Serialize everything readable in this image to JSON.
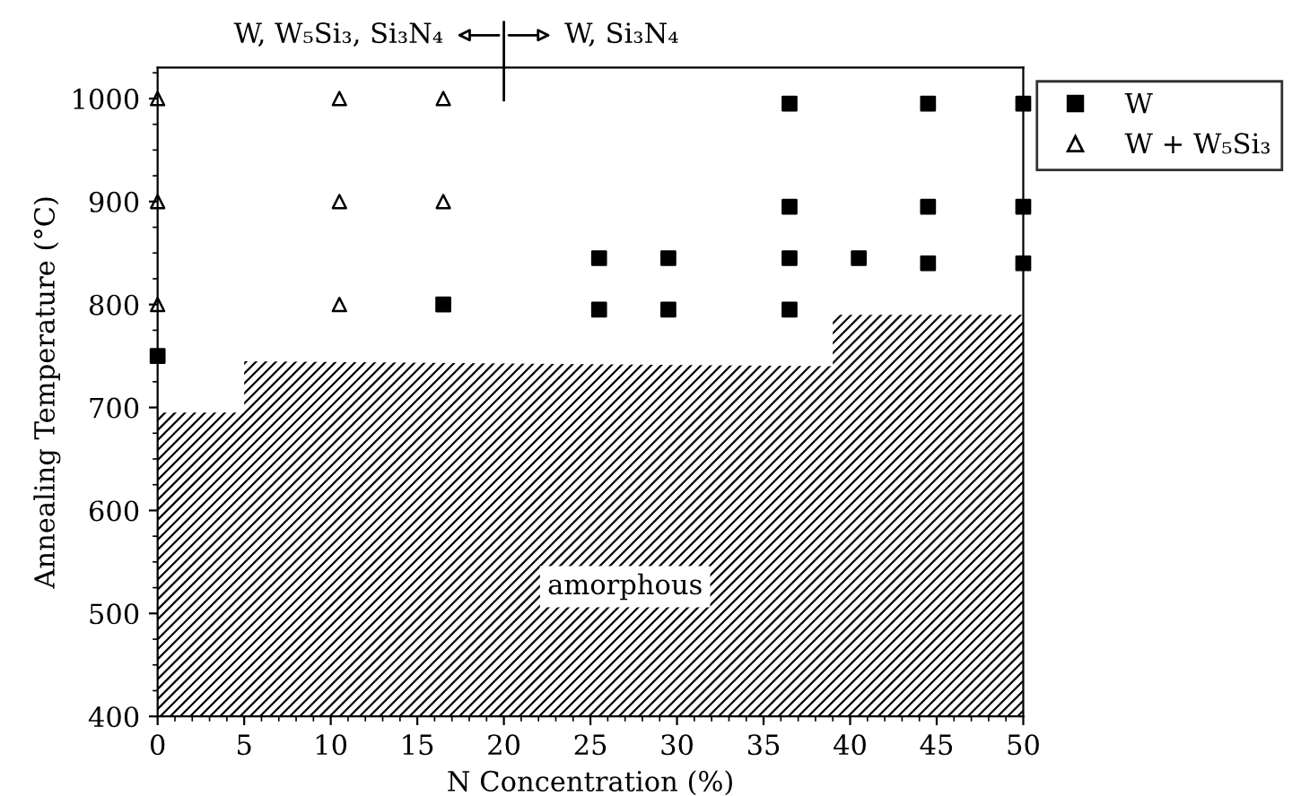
{
  "chart_data": {
    "type": "scatter",
    "xlabel": "N Concentration (%)",
    "ylabel": "Annealing Temperature (°C)",
    "xlim": [
      0,
      50
    ],
    "ylim": [
      400,
      1030
    ],
    "xticks": [
      0,
      5,
      10,
      15,
      20,
      25,
      30,
      35,
      40,
      45,
      50
    ],
    "yticks": [
      400,
      500,
      600,
      700,
      800,
      900,
      1000
    ],
    "legend": "right",
    "grid": false,
    "series": [
      {
        "name": "W",
        "color": "#000000",
        "marker": "square",
        "x": [
          0,
          16.5,
          25.5,
          25.5,
          29.5,
          29.5,
          36.5,
          36.5,
          36.5,
          36.5,
          40.5,
          44.5,
          44.5,
          44.5,
          50,
          50,
          50
        ],
        "values": [
          750,
          800,
          845,
          795,
          845,
          795,
          995,
          895,
          845,
          795,
          845,
          995,
          895,
          840,
          995,
          895,
          840
        ]
      },
      {
        "name": "W + W₅Si₃",
        "color": "#000000",
        "marker": "triangle",
        "x": [
          0,
          0,
          0,
          10.5,
          10.5,
          10.5,
          16.5,
          16.5
        ],
        "values": [
          1000,
          900,
          800,
          1000,
          900,
          800,
          1000,
          900
        ]
      },
      {
        "type": "area",
        "color": "#000000",
        "x": [
          0,
          5,
          5,
          39,
          39,
          50
        ],
        "values": [
          695,
          695,
          745,
          740,
          790,
          790
        ]
      }
    ],
    "annotations": [
      "W, W₅Si₃, Si₃N₄",
      "W, Si₃N₄",
      "amorphous"
    ]
  }
}
